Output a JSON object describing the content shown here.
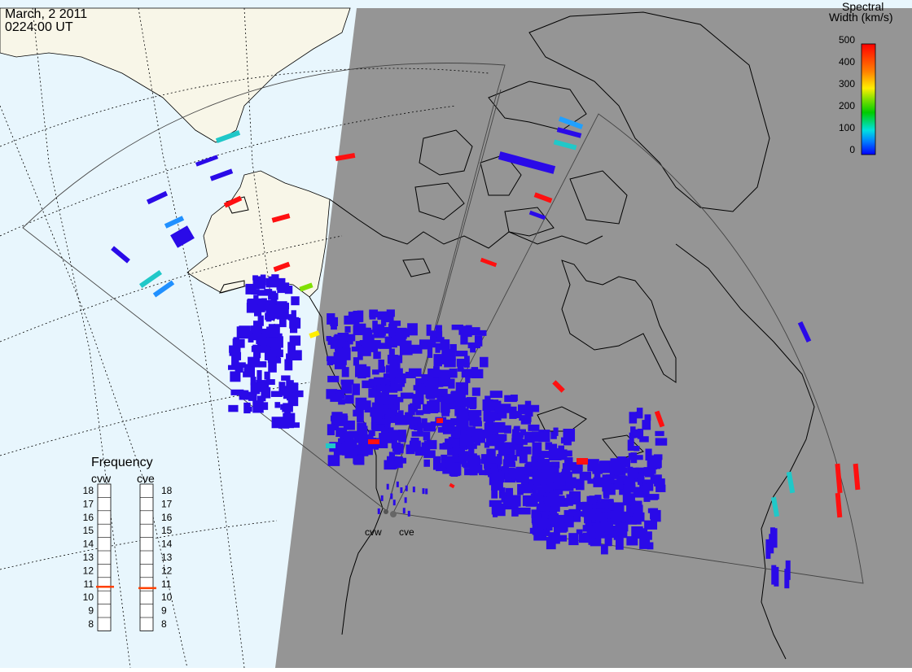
{
  "header": {
    "date": "March, 2 2011",
    "time": "0224:00 UT"
  },
  "colorbar": {
    "title_line1": "Spectral",
    "title_line2": "Width (km/s)",
    "ticks": [
      "500",
      "400",
      "300",
      "200",
      "100",
      "0"
    ],
    "range": [
      0,
      500
    ]
  },
  "frequency": {
    "title": "Frequency",
    "radars": [
      {
        "name": "cvw",
        "value": 10.8
      },
      {
        "name": "cve",
        "value": 10.7
      }
    ],
    "scale": [
      "18",
      "17",
      "16",
      "15",
      "14",
      "13",
      "12",
      "11",
      "10",
      "9",
      "8"
    ]
  },
  "stations": {
    "cvw": "cvw",
    "cve": "cve"
  },
  "colors": {
    "night": "#959595",
    "ocean": "#e8f6fd",
    "land": "#f8f6e8",
    "echo": "#2a0ae8"
  }
}
